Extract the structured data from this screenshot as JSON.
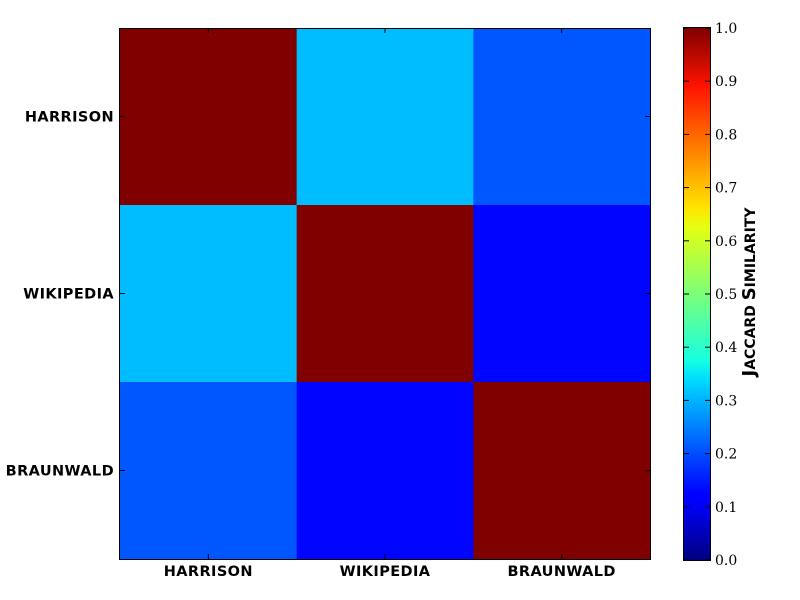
{
  "chart_data": {
    "type": "heatmap",
    "x_categories": [
      "HARRISON",
      "WIKIPEDIA",
      "BRAUNWALD"
    ],
    "y_categories": [
      "HARRISON",
      "WIKIPEDIA",
      "BRAUNWALD"
    ],
    "values": [
      [
        1.0,
        0.31,
        0.21
      ],
      [
        0.31,
        1.0,
        0.13
      ],
      [
        0.21,
        0.13,
        1.0
      ]
    ],
    "colormap": "jet",
    "colorbar": {
      "label_parts": [
        {
          "text": "J",
          "size": "large"
        },
        {
          "text": "ACCARD ",
          "size": "small"
        },
        {
          "text": "S",
          "size": "large"
        },
        {
          "text": "IMILARITY",
          "size": "small"
        }
      ],
      "range": [
        0.0,
        1.0
      ],
      "ticks": [
        "0.0",
        "0.1",
        "0.2",
        "0.3",
        "0.4",
        "0.5",
        "0.6",
        "0.7",
        "0.8",
        "0.9",
        "1.0"
      ]
    }
  }
}
